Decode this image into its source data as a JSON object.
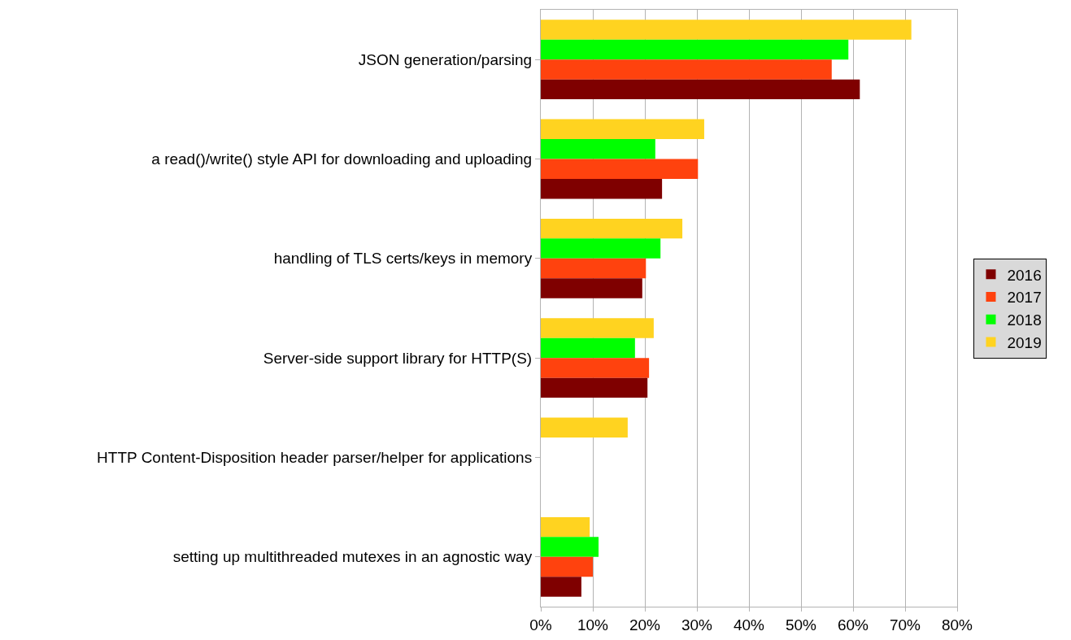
{
  "chart_data": {
    "type": "bar",
    "orientation": "horizontal",
    "categories": [
      "JSON generation/parsing",
      "a read()/write() style API for downloading and uploading",
      "handling of TLS certs/keys in memory",
      "Server-side support library for HTTP(S)",
      "HTTP Content-Disposition header parser/helper for applications",
      "setting up multithreaded mutexes in an agnostic way"
    ],
    "series": [
      {
        "name": "2016",
        "color": "#7f0000",
        "values": [
          61.3,
          23.3,
          19.5,
          20.5,
          null,
          7.8
        ]
      },
      {
        "name": "2017",
        "color": "#ff420e",
        "values": [
          55.9,
          30.2,
          20.2,
          20.8,
          null,
          10.0
        ]
      },
      {
        "name": "2018",
        "color": "#00ff00",
        "values": [
          59.1,
          22.0,
          23.0,
          18.1,
          null,
          11.1
        ]
      },
      {
        "name": "2019",
        "color": "#ffd320",
        "values": [
          71.2,
          31.4,
          27.2,
          21.7,
          16.7,
          9.4
        ]
      }
    ],
    "xlim": [
      0,
      80
    ],
    "xticks": [
      {
        "value": 0,
        "label": "0%"
      },
      {
        "value": 10,
        "label": "10%"
      },
      {
        "value": 20,
        "label": "20%"
      },
      {
        "value": 30,
        "label": "30%"
      },
      {
        "value": 40,
        "label": "40%"
      },
      {
        "value": 50,
        "label": "50%"
      },
      {
        "value": 60,
        "label": "60%"
      },
      {
        "value": 70,
        "label": "70%"
      },
      {
        "value": 80,
        "label": "80%"
      }
    ],
    "grid": "x",
    "legend": "right"
  }
}
